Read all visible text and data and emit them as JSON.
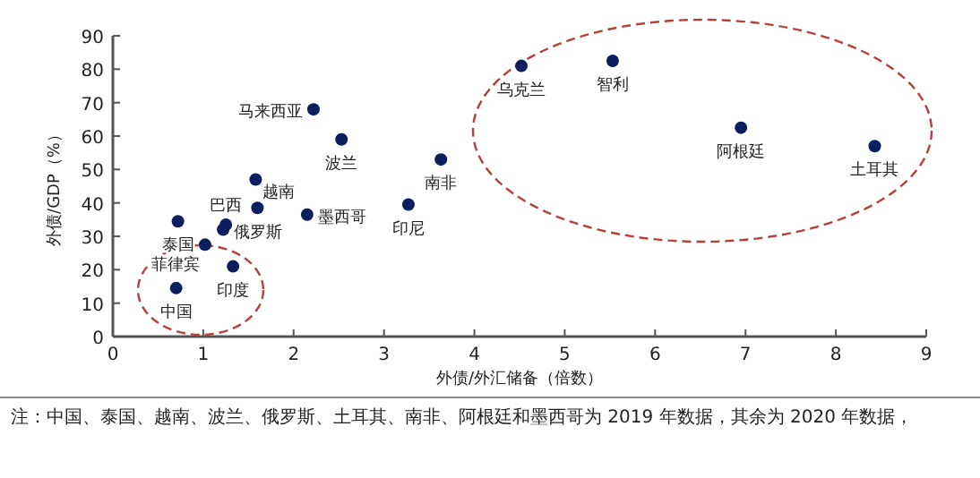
{
  "chart_data": {
    "type": "scatter",
    "xlabel": "外债/外汇储备（倍数）",
    "ylabel": "外债/GDP（%）",
    "x": [
      0.7,
      0.72,
      1.02,
      1.22,
      1.25,
      1.33,
      1.58,
      1.6,
      2.15,
      2.22,
      2.53,
      3.27,
      3.63,
      4.52,
      5.53,
      6.95,
      8.43
    ],
    "values": [
      14.5,
      34.5,
      27.5,
      32,
      33.5,
      21,
      47,
      38.5,
      36.5,
      68,
      59,
      39.5,
      53,
      81,
      82.5,
      62.5,
      57
    ],
    "color": "#0b1f5e",
    "marker": "circle",
    "xlim": [
      0,
      9
    ],
    "xticks": [
      0,
      1,
      2,
      3,
      4,
      5,
      6,
      7,
      8,
      9
    ],
    "ylim": [
      0,
      90
    ],
    "yticks": [
      0,
      10,
      20,
      30,
      40,
      50,
      60,
      70,
      80,
      90
    ],
    "annotations": [
      {
        "text": "中国",
        "x": 0.7,
        "y": 14.5
      },
      {
        "text": "泰国",
        "x": 0.72,
        "y": 34.5
      },
      {
        "text": "菲律宾",
        "x": 1.02,
        "y": 27.5
      },
      {
        "text": "俄罗斯",
        "x": 1.22,
        "y": 32
      },
      {
        "text": "巴西",
        "x": 1.25,
        "y": 33.5
      },
      {
        "text": "印度",
        "x": 1.33,
        "y": 21
      },
      {
        "text": "越南",
        "x": 1.6,
        "y": 38.5
      },
      {
        "text": "墨西哥",
        "x": 2.15,
        "y": 36.5
      },
      {
        "text": "马来西亚",
        "x": 2.22,
        "y": 68
      },
      {
        "text": "波兰",
        "x": 2.53,
        "y": 59
      },
      {
        "text": "印尼",
        "x": 3.27,
        "y": 39.5
      },
      {
        "text": "南非",
        "x": 3.63,
        "y": 53
      },
      {
        "text": "乌克兰",
        "x": 4.52,
        "y": 81
      },
      {
        "text": "智利",
        "x": 5.53,
        "y": 82.5
      },
      {
        "text": "阿根廷",
        "x": 6.95,
        "y": 62.5
      },
      {
        "text": "土耳其",
        "x": 8.43,
        "y": 57
      },
      "注：中国、泰国、越南、波兰、俄罗斯、土耳其、南非、阿根廷和墨西哥为 2019 年数据，其余为 2020 年数据，"
    ]
  }
}
